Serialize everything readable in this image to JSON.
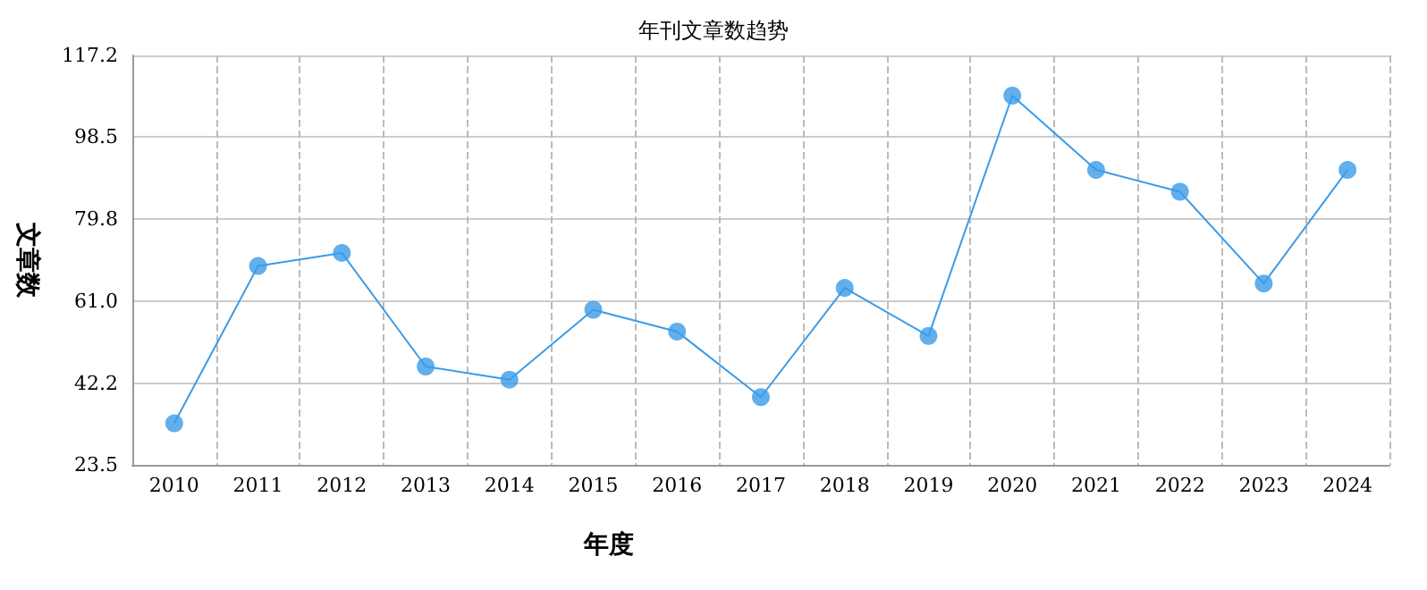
{
  "chart_data": {
    "type": "line",
    "title": "年刊文章数趋势",
    "xlabel": "年度",
    "ylabel": "文章数",
    "categories": [
      "2010",
      "2011",
      "2012",
      "2013",
      "2014",
      "2015",
      "2016",
      "2017",
      "2018",
      "2019",
      "2020",
      "2021",
      "2022",
      "2023",
      "2024"
    ],
    "series": [
      {
        "color": "#3a9be8",
        "values": [
          33,
          69,
          72,
          46,
          43,
          59,
          54,
          39,
          64,
          53,
          108,
          91,
          86,
          65,
          91
        ]
      }
    ],
    "ylim": [
      23.5,
      117.2
    ],
    "yticks": [
      23.5,
      42.2,
      {
        "value": 61,
        "label": "61.0"
      },
      79.8,
      98.5,
      117.2
    ],
    "grid": true,
    "marker": "circle",
    "line_style": "solid"
  }
}
